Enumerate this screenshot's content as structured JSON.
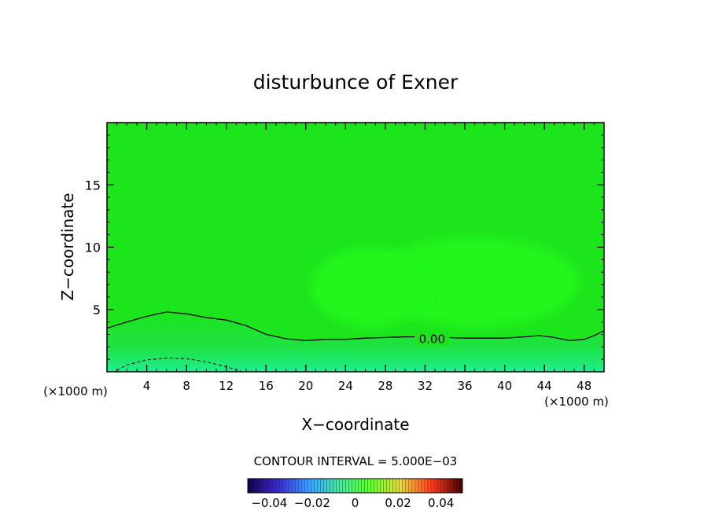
{
  "chart_data": {
    "type": "contour",
    "title": "disturbunce of Exner",
    "xlabel": "X−coordinate",
    "ylabel": "Z−coordinate",
    "x_unit_left": "(×1000 m)",
    "x_unit_right": "(×1000 m)",
    "xlim": [
      0,
      50
    ],
    "ylim": [
      0,
      20
    ],
    "xticks": [
      4,
      8,
      12,
      16,
      20,
      24,
      28,
      32,
      36,
      40,
      44,
      48
    ],
    "yticks": [
      5,
      10,
      15
    ],
    "xtick_labels": [
      "4",
      "8",
      "12",
      "16",
      "20",
      "24",
      "28",
      "32",
      "36",
      "40",
      "44",
      "48"
    ],
    "ytick_labels": [
      "5",
      "10",
      "15"
    ],
    "contour_interval_text": "CONTOUR INTERVAL = 5.000E−03",
    "contour_label": "0.00",
    "contours": [
      {
        "level": 0.0,
        "style": "solid",
        "x": [
          0,
          2,
          4,
          6,
          8,
          10,
          12,
          14,
          16,
          18,
          20,
          22,
          24,
          26,
          28,
          30,
          32,
          34,
          36,
          38,
          40,
          42,
          43.5,
          45,
          46.5,
          48,
          49,
          50
        ],
        "z": [
          3.5,
          4.0,
          4.45,
          4.8,
          4.65,
          4.35,
          4.15,
          3.7,
          3.0,
          2.65,
          2.5,
          2.6,
          2.6,
          2.7,
          2.75,
          2.8,
          2.8,
          2.75,
          2.7,
          2.7,
          2.7,
          2.8,
          2.9,
          2.75,
          2.5,
          2.6,
          2.9,
          3.3
        ]
      },
      {
        "level": -0.005,
        "style": "dashed",
        "x": [
          1,
          2,
          4,
          6,
          8,
          10,
          12,
          13.5
        ],
        "z": [
          0.1,
          0.55,
          0.95,
          1.1,
          1.05,
          0.8,
          0.4,
          0.05
        ]
      }
    ],
    "colorbar": {
      "min": -0.05,
      "max": 0.05,
      "ticks": [
        -0.04,
        -0.02,
        0,
        0.02,
        0.04
      ],
      "tick_labels": [
        "−0.04",
        "−0.02",
        "0",
        "0.02",
        "0.04"
      ],
      "colors": [
        "#140050",
        "#3a2bd0",
        "#3fa0ff",
        "#4fe6a0",
        "#66ff33",
        "#e6d64a",
        "#ff3a1e",
        "#4a0000"
      ]
    },
    "field_colors": {
      "background": "#1ce51c",
      "positive_patch": "#22f61a",
      "low_region": "#20e060",
      "low_region_strong": "#1ef0a0"
    }
  }
}
